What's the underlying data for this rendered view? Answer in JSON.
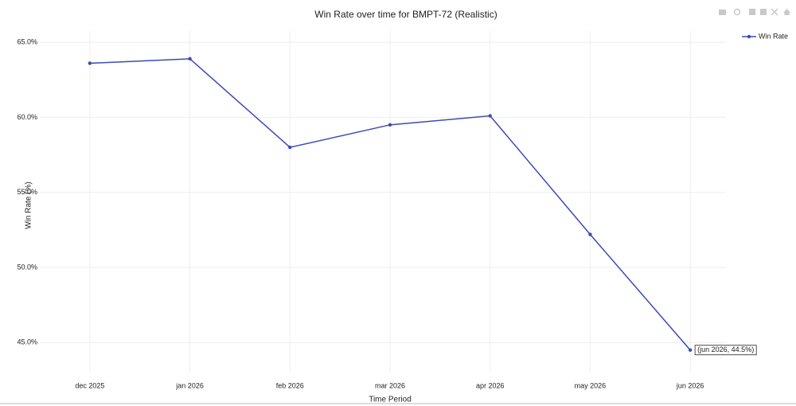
{
  "chart_data": {
    "type": "line",
    "title": "Win Rate over time for BMPT-72 (Realistic)",
    "x_label": "Time Period",
    "y_label": "Win Rate (%)",
    "categories": [
      "dec 2025",
      "jan 2026",
      "feb 2026",
      "mar 2026",
      "apr 2026",
      "may 2026",
      "jun 2026"
    ],
    "series": [
      {
        "name": "Win Rate",
        "color": "#3a4ab4",
        "values": [
          63.6,
          63.9,
          58.0,
          59.5,
          60.1,
          52.2,
          44.5
        ]
      }
    ],
    "ylim": [
      43.0,
      65.8
    ],
    "yticks": [
      {
        "value": 45,
        "label": "45.0%"
      },
      {
        "value": 50,
        "label": "50.0%"
      },
      {
        "value": 55,
        "label": "55.0%"
      },
      {
        "value": 60,
        "label": "60.0%"
      },
      {
        "value": 65,
        "label": "65.0%"
      }
    ],
    "grid": true,
    "legend_position": "top-right",
    "annotation": "(jun 2026, 44.5%)"
  }
}
